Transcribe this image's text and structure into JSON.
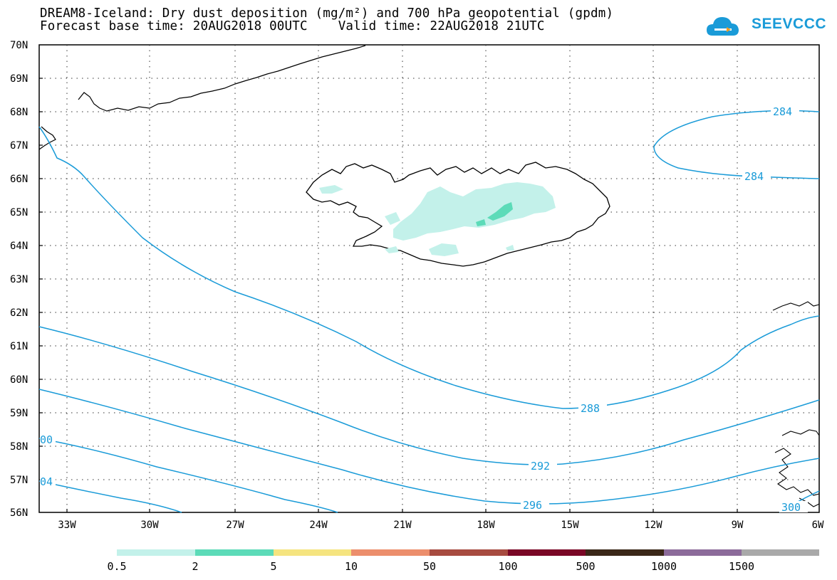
{
  "title": {
    "line1": "DREAM8-Iceland: Dry dust deposition (mg/m²) and 700 hPa geopotential (gpdm)",
    "line2": "Forecast base time: 20AUG2018 00UTC    Valid time: 22AUG2018 21UTC"
  },
  "logo": {
    "text": "SEEVCCC",
    "icon": "cloud-icon",
    "color": "#1a9bd8"
  },
  "map": {
    "lat_labels": [
      "70N",
      "69N",
      "68N",
      "67N",
      "66N",
      "65N",
      "64N",
      "63N",
      "62N",
      "61N",
      "60N",
      "59N",
      "58N",
      "57N",
      "56N"
    ],
    "lon_labels": [
      "33W",
      "30W",
      "27W",
      "24W",
      "21W",
      "18W",
      "15W",
      "12W",
      "9W",
      "6W"
    ],
    "contour_color": "#1a9bd8",
    "contours": [
      "284",
      "284",
      "288",
      "292",
      "296",
      "300",
      "00",
      "04"
    ],
    "dust_light_color": "#c3f1ea",
    "dust_dark_color": "#5cdbb8"
  },
  "legend": {
    "colors": [
      "#c3f1ea",
      "#5cdbb8",
      "#f5e47f",
      "#ec8e6c",
      "#a74b40",
      "#7a0726",
      "#3a2718",
      "#8c6b9a",
      "#a9a9a9"
    ],
    "labels": [
      "0.5",
      "2",
      "5",
      "10",
      "50",
      "100",
      "500",
      "1000",
      "1500"
    ]
  }
}
